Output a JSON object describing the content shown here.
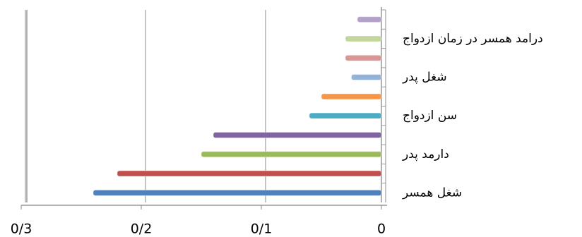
{
  "chart_data": {
    "type": "bar",
    "orientation": "horizontal",
    "reversed_x": true,
    "categories": [
      "شغل همسر",
      null,
      "دارمد پدر",
      null,
      "سن ازدواج",
      null,
      "شغل پدر",
      null,
      "درامد همسر در زمان ازدواج",
      null
    ],
    "values": [
      0.24,
      0.22,
      0.15,
      0.14,
      0.06,
      0.05,
      0.025,
      0.03,
      0.03,
      0.02
    ],
    "colors": [
      "#4f81bd",
      "#c0504d",
      "#9bbb59",
      "#8064a2",
      "#4bacc6",
      "#f79646",
      "#95b3d7",
      "#d99694",
      "#c3d69b",
      "#b3a2c7"
    ],
    "xlim": [
      0,
      0.3
    ],
    "xticks": [
      0,
      {
        "value": 0.1,
        "label": "0/1"
      },
      {
        "value": 0.2,
        "label": "0/2"
      },
      {
        "value": 0.3,
        "label": "0/3"
      }
    ],
    "grid": true
  }
}
